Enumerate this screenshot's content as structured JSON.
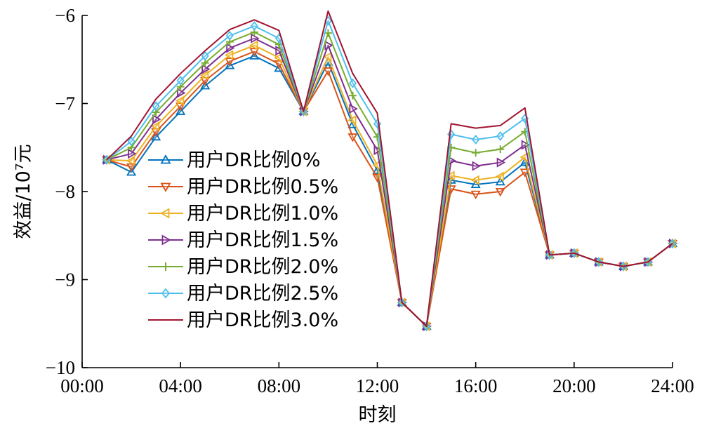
{
  "chart_data": {
    "type": "line",
    "xlabel": "时刻",
    "ylabel": "效益/10⁷元",
    "xlim": [
      0,
      24
    ],
    "ylim": [
      -10,
      -6
    ],
    "x_ticks": [
      0,
      4,
      8,
      12,
      16,
      20,
      24
    ],
    "x_tick_labels": [
      "00:00",
      "04:00",
      "08:00",
      "12:00",
      "16:00",
      "20:00",
      "24:00"
    ],
    "y_ticks": [
      -6,
      -7,
      -8,
      -9,
      -10
    ],
    "y_tick_labels": [
      "−6",
      "−7",
      "−8",
      "−9",
      "−10"
    ],
    "grid": false,
    "legend_position": "left-middle",
    "x": [
      1,
      2,
      3,
      4,
      5,
      6,
      7,
      8,
      9,
      10,
      11,
      12,
      13,
      14,
      15,
      16,
      17,
      18,
      19,
      20,
      21,
      22,
      23,
      24
    ],
    "series": [
      {
        "name": "用户DR比例0%",
        "color": "#0072BD",
        "marker": "triangle-up",
        "values": [
          -7.64,
          -7.78,
          -7.38,
          -7.09,
          -6.8,
          -6.57,
          -6.46,
          -6.6,
          -7.09,
          -6.53,
          -7.24,
          -7.76,
          -9.26,
          -9.53,
          -7.87,
          -7.92,
          -7.89,
          -7.67,
          -8.72,
          -8.7,
          -8.8,
          -8.85,
          -8.8,
          -8.59
        ]
      },
      {
        "name": "用户DR比例0.5%",
        "color": "#D95319",
        "marker": "triangle-down",
        "values": [
          -7.64,
          -7.72,
          -7.32,
          -7.03,
          -6.74,
          -6.52,
          -6.41,
          -6.55,
          -7.09,
          -6.63,
          -7.38,
          -7.84,
          -9.26,
          -9.53,
          -7.97,
          -8.03,
          -8.0,
          -7.78,
          -8.72,
          -8.7,
          -8.8,
          -8.85,
          -8.8,
          -8.59
        ]
      },
      {
        "name": "用户DR比例1.0%",
        "color": "#EDB120",
        "marker": "triangle-left",
        "values": [
          -7.64,
          -7.65,
          -7.26,
          -6.97,
          -6.68,
          -6.45,
          -6.34,
          -6.48,
          -7.09,
          -6.47,
          -7.19,
          -7.7,
          -9.26,
          -9.53,
          -7.82,
          -7.87,
          -7.83,
          -7.61,
          -8.72,
          -8.7,
          -8.8,
          -8.85,
          -8.8,
          -8.59
        ]
      },
      {
        "name": "用户DR比例1.5%",
        "color": "#7E2F8E",
        "marker": "triangle-right",
        "values": [
          -7.64,
          -7.57,
          -7.18,
          -6.88,
          -6.61,
          -6.37,
          -6.26,
          -6.4,
          -7.09,
          -6.34,
          -7.06,
          -7.53,
          -9.26,
          -9.53,
          -7.65,
          -7.71,
          -7.67,
          -7.47,
          -8.72,
          -8.7,
          -8.8,
          -8.85,
          -8.8,
          -8.59
        ]
      },
      {
        "name": "用户DR比例2.0%",
        "color": "#77AC30",
        "marker": "plus",
        "values": [
          -7.64,
          -7.5,
          -7.1,
          -6.81,
          -6.54,
          -6.3,
          -6.19,
          -6.33,
          -7.09,
          -6.2,
          -6.91,
          -7.38,
          -9.26,
          -9.53,
          -7.5,
          -7.56,
          -7.52,
          -7.32,
          -8.72,
          -8.7,
          -8.8,
          -8.85,
          -8.8,
          -8.59
        ]
      },
      {
        "name": "用户DR比例2.5%",
        "color": "#4DBEEE",
        "marker": "diamond",
        "values": [
          -7.64,
          -7.43,
          -7.03,
          -6.74,
          -6.46,
          -6.23,
          -6.12,
          -6.26,
          -7.09,
          -6.06,
          -6.77,
          -7.23,
          -9.26,
          -9.53,
          -7.35,
          -7.41,
          -7.37,
          -7.17,
          -8.72,
          -8.7,
          -8.8,
          -8.85,
          -8.8,
          -8.59
        ]
      },
      {
        "name": "用户DR比例3.0%",
        "color": "#A2142F",
        "marker": "none",
        "values": [
          -7.64,
          -7.37,
          -6.95,
          -6.66,
          -6.4,
          -6.16,
          -6.05,
          -6.17,
          -7.09,
          -5.95,
          -6.66,
          -7.11,
          -9.26,
          -9.53,
          -7.23,
          -7.28,
          -7.25,
          -7.05,
          -8.72,
          -8.7,
          -8.8,
          -8.85,
          -8.8,
          -8.59
        ]
      }
    ]
  }
}
